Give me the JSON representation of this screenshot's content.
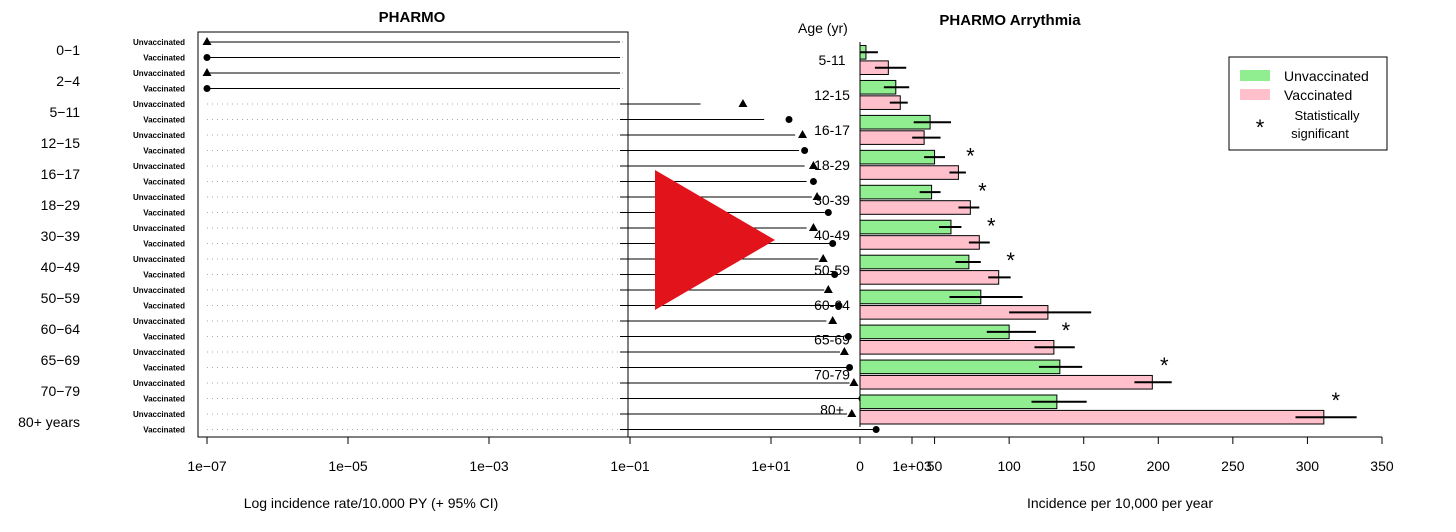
{
  "colors": {
    "unvaccinated": "#90ee90",
    "vaccinated": "#ffc0cb",
    "arrow": "#e3131b",
    "star": "#e34a1b"
  },
  "chart_data": [
    {
      "type": "scatter",
      "title": "PHARMO",
      "xlabel": "Log incidence rate/10.000 PY (+ 95% CI)",
      "ylabel": "",
      "x_scale": "log",
      "xlim": [
        1e-07,
        500000
      ],
      "x_ticks": [
        1e-07,
        1e-05,
        0.001,
        0.1,
        10,
        1000
      ],
      "x_tick_labels": [
        "1e−07",
        "1e−05",
        "1e−03",
        "1e−01",
        "1e+01",
        "1e+03"
      ],
      "grid": true,
      "groups": [
        "0−1",
        "2−4",
        "5−11",
        "12−15",
        "16−17",
        "18−29",
        "30−39",
        "40−49",
        "50−59",
        "60−64",
        "65−69",
        "70−79",
        "80+ years"
      ],
      "row_labels": [
        "Unvaccinated",
        "Vaccinated"
      ],
      "series": [
        {
          "name": "Unvaccinated",
          "marker": "triangle",
          "values": [
            1e-07,
            1e-07,
            4,
            28,
            40,
            45,
            40,
            55,
            65,
            75,
            110,
            150,
            140
          ],
          "lower": [
            1e-07,
            1e-07,
            1,
            22,
            30,
            38,
            32,
            47,
            57,
            61,
            95,
            130,
            120
          ],
          "upper": [
            200000,
            5000,
            12,
            35,
            50,
            53,
            50,
            65,
            75,
            95,
            128,
            170,
            160
          ]
        },
        {
          "name": "Vaccinated",
          "marker": "circle",
          "values": [
            1e-07,
            1e-07,
            18,
            30,
            40,
            65,
            75,
            80,
            92,
            125,
            130,
            195,
            310
          ],
          "lower": [
            1e-07,
            1e-07,
            8,
            25,
            32,
            58,
            68,
            72,
            84,
            108,
            118,
            182,
            290
          ],
          "upper": [
            200000,
            5000,
            30,
            36,
            50,
            72,
            82,
            88,
            100,
            142,
            142,
            208,
            330
          ]
        }
      ]
    },
    {
      "type": "bar",
      "orientation": "horizontal",
      "title": "PHARMO Arrythmia",
      "categories_title": "Age (yr)",
      "categories": [
        "5-11",
        "12-15",
        "16-17",
        "18-29",
        "30-39",
        "40-49",
        "50-59",
        "60-64",
        "65-69",
        "70-79",
        "80+"
      ],
      "xlabel": "Incidence per 10,000 per year",
      "xlim": [
        0,
        350
      ],
      "x_ticks": [
        0,
        50,
        100,
        150,
        200,
        250,
        300,
        350
      ],
      "series": [
        {
          "name": "Unvaccinated",
          "values": [
            4,
            24,
            47,
            50,
            48,
            61,
            73,
            81,
            100,
            134,
            132
          ],
          "ci_low": [
            0,
            16,
            36,
            43,
            40,
            53,
            64,
            60,
            85,
            120,
            115
          ],
          "ci_high": [
            12,
            33,
            61,
            57,
            54,
            68,
            81,
            109,
            118,
            149,
            152
          ]
        },
        {
          "name": "Vaccinated",
          "values": [
            19,
            27,
            43,
            66,
            74,
            80,
            93,
            126,
            130,
            196,
            311
          ],
          "ci_low": [
            10,
            20,
            35,
            60,
            66,
            73,
            86,
            100,
            117,
            184,
            292
          ],
          "ci_high": [
            31,
            32,
            54,
            71,
            80,
            87,
            101,
            155,
            144,
            209,
            333
          ]
        }
      ],
      "significant": [
        "18-29",
        "30-39",
        "40-49",
        "50-59",
        "65-69",
        "70-79",
        "80+"
      ],
      "legend": {
        "position": "top-right",
        "items": [
          "Unvaccinated",
          "Vaccinated",
          "Statistically significant"
        ],
        "star_symbol": "*"
      }
    }
  ]
}
